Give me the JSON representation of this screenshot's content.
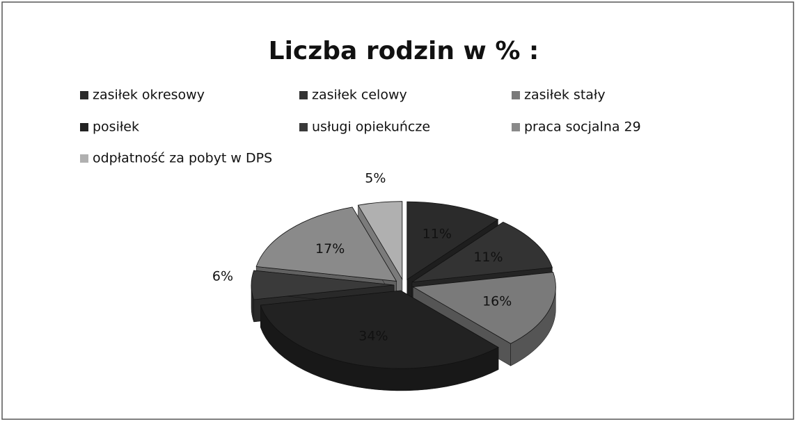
{
  "chart_data": {
    "type": "pie",
    "title": "Liczba rodzin w % :",
    "categories": [
      "zasiłek okresowy",
      "zasiłek celowy",
      "zasiłek stały",
      "posiłek",
      "usługi opiekuńcze",
      "praca socjalna 29",
      "odpłatność za pobyt w DPS"
    ],
    "values": [
      11,
      11,
      16,
      34,
      6,
      17,
      5
    ],
    "value_labels": [
      "11%",
      "11%",
      "16%",
      "34%",
      "6%",
      "17%",
      "5%"
    ],
    "colors": [
      "#2b2b2b",
      "#333333",
      "#7a7a7a",
      "#222222",
      "#3a3a3a",
      "#8a8a8a",
      "#b0b0b0"
    ],
    "legend": "top"
  }
}
